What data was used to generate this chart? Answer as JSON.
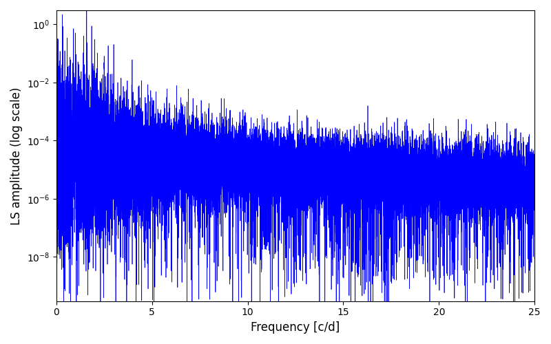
{
  "xlabel": "Frequency [c/d]",
  "ylabel": "LS amplitude (log scale)",
  "xlim": [
    0,
    25
  ],
  "ylim_bottom": 3e-10,
  "ylim_top": 3.0,
  "line_color": "#0000ff",
  "line_width": 0.5,
  "background_color": "#ffffff",
  "figsize": [
    8.0,
    5.0
  ],
  "dpi": 100,
  "freq_max": 25.0,
  "n_points": 25000,
  "seed": 7
}
